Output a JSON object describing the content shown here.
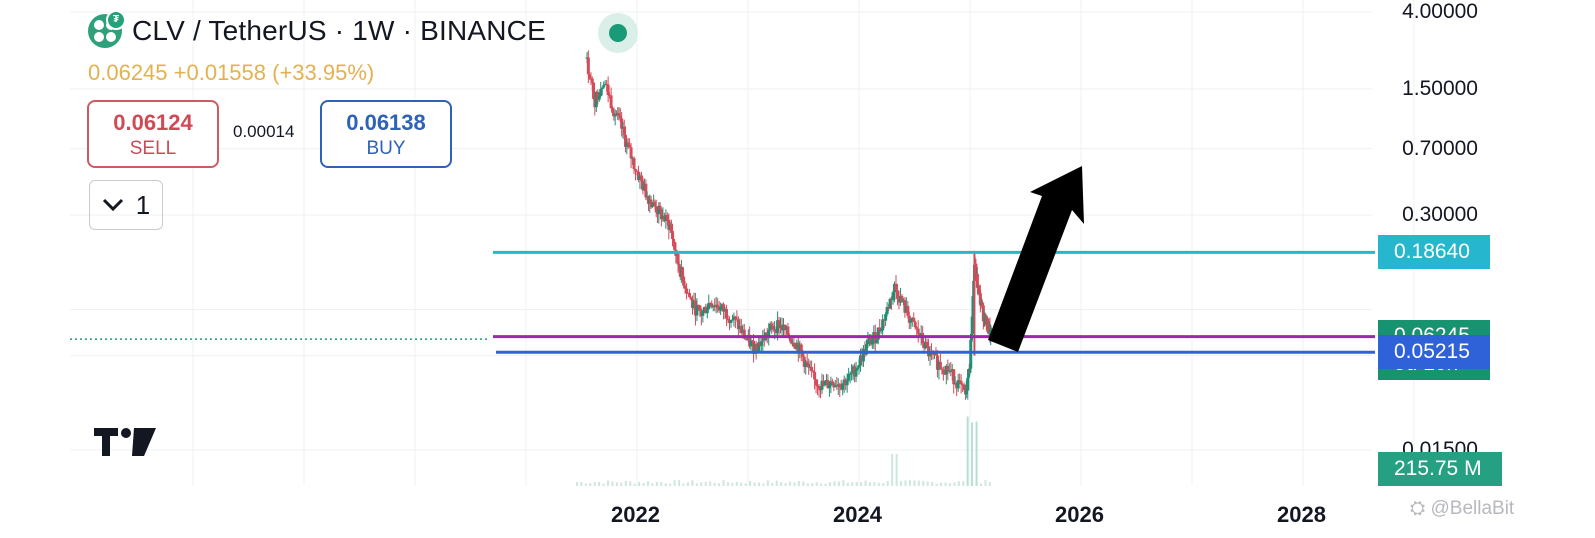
{
  "header": {
    "symbol_title": "CLV / TetherUS · 1W · BINANCE",
    "quote_line": "0.06245 +0.01558 (+33.95%)"
  },
  "trade": {
    "sell_price": "0.06124",
    "sell_label": "SELL",
    "spread": "0.00014",
    "buy_price": "0.06138",
    "buy_label": "BUY"
  },
  "indicator_toggle": {
    "count": "1"
  },
  "watermark": "@BellaBit",
  "chart_data": {
    "type": "candlestick",
    "scale": "log",
    "x_ticks": [
      "2022",
      "2024",
      "2026",
      "2028"
    ],
    "y_ticks": [
      "4.00000",
      "1.50000",
      "0.70000",
      "0.30000",
      "0.01500"
    ],
    "price_tags": [
      {
        "label": "0.18640",
        "value": 0.1864,
        "color": "#26b7cf"
      },
      {
        "label": "0.06368",
        "value": 0.06368,
        "color": "#9c27b0"
      },
      {
        "label": "0.06245",
        "sub": "5d 10h",
        "value": 0.06245,
        "color": "#18936f"
      },
      {
        "label": "0.05215",
        "value": 0.05215,
        "color": "#2f62d8"
      }
    ],
    "volume_tag": "215.75 M",
    "horizontal_lines": [
      {
        "value": 0.1864,
        "color": "#26b7cf"
      },
      {
        "value": 0.06368,
        "color": "#9c27b0"
      },
      {
        "value": 0.05215,
        "color": "#2f62d8"
      }
    ],
    "close_series": [
      {
        "x": 2021.55,
        "y": 2.1
      },
      {
        "x": 2021.62,
        "y": 1.3
      },
      {
        "x": 2021.7,
        "y": 1.7
      },
      {
        "x": 2021.78,
        "y": 1.2
      },
      {
        "x": 2021.85,
        "y": 0.95
      },
      {
        "x": 2021.92,
        "y": 0.7
      },
      {
        "x": 2022.0,
        "y": 0.52
      },
      {
        "x": 2022.08,
        "y": 0.4
      },
      {
        "x": 2022.15,
        "y": 0.34
      },
      {
        "x": 2022.22,
        "y": 0.3
      },
      {
        "x": 2022.3,
        "y": 0.26
      },
      {
        "x": 2022.36,
        "y": 0.17
      },
      {
        "x": 2022.42,
        "y": 0.13
      },
      {
        "x": 2022.5,
        "y": 0.095
      },
      {
        "x": 2022.58,
        "y": 0.085
      },
      {
        "x": 2022.66,
        "y": 0.1
      },
      {
        "x": 2022.74,
        "y": 0.093
      },
      {
        "x": 2022.82,
        "y": 0.085
      },
      {
        "x": 2022.9,
        "y": 0.075
      },
      {
        "x": 2022.98,
        "y": 0.062
      },
      {
        "x": 2023.05,
        "y": 0.056
      },
      {
        "x": 2023.12,
        "y": 0.06
      },
      {
        "x": 2023.2,
        "y": 0.07
      },
      {
        "x": 2023.28,
        "y": 0.075
      },
      {
        "x": 2023.36,
        "y": 0.065
      },
      {
        "x": 2023.44,
        "y": 0.058
      },
      {
        "x": 2023.52,
        "y": 0.045
      },
      {
        "x": 2023.6,
        "y": 0.036
      },
      {
        "x": 2023.68,
        "y": 0.034
      },
      {
        "x": 2023.76,
        "y": 0.036
      },
      {
        "x": 2023.84,
        "y": 0.035
      },
      {
        "x": 2023.92,
        "y": 0.038
      },
      {
        "x": 2024.0,
        "y": 0.046
      },
      {
        "x": 2024.08,
        "y": 0.058
      },
      {
        "x": 2024.16,
        "y": 0.065
      },
      {
        "x": 2024.24,
        "y": 0.085
      },
      {
        "x": 2024.32,
        "y": 0.12
      },
      {
        "x": 2024.4,
        "y": 0.095
      },
      {
        "x": 2024.48,
        "y": 0.075
      },
      {
        "x": 2024.56,
        "y": 0.062
      },
      {
        "x": 2024.64,
        "y": 0.05
      },
      {
        "x": 2024.72,
        "y": 0.045
      },
      {
        "x": 2024.8,
        "y": 0.042
      },
      {
        "x": 2024.88,
        "y": 0.036
      },
      {
        "x": 2024.96,
        "y": 0.03
      },
      {
        "x": 2025.0,
        "y": 0.046
      },
      {
        "x": 2025.04,
        "y": 0.16
      },
      {
        "x": 2025.08,
        "y": 0.11
      },
      {
        "x": 2025.12,
        "y": 0.085
      },
      {
        "x": 2025.16,
        "y": 0.072
      },
      {
        "x": 2025.2,
        "y": 0.06245
      }
    ],
    "annotation": "upward arrow"
  }
}
